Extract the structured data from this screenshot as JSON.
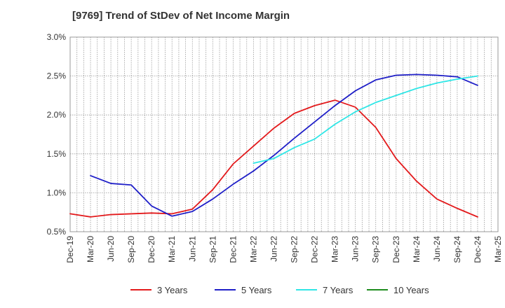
{
  "chart_data": {
    "type": "line",
    "title": "[9769]  Trend of StDev of Net Income Margin",
    "xlabel": "",
    "ylabel": "",
    "x": [
      "Dec-19",
      "Mar-20",
      "Jun-20",
      "Sep-20",
      "Dec-20",
      "Mar-21",
      "Jun-21",
      "Sep-21",
      "Dec-21",
      "Mar-22",
      "Jun-22",
      "Sep-22",
      "Dec-22",
      "Mar-23",
      "Jun-23",
      "Sep-23",
      "Dec-23",
      "Mar-24",
      "Jun-24",
      "Sep-24",
      "Dec-24",
      "Mar-25"
    ],
    "ylim": [
      0.5,
      3.0
    ],
    "yticks": [
      "0.5%",
      "1.0%",
      "1.5%",
      "2.0%",
      "2.5%",
      "3.0%"
    ],
    "grid": true,
    "legend_position": "bottom",
    "series": [
      {
        "name": "3 Years",
        "color": "#e31a1c",
        "values": [
          0.73,
          0.69,
          0.72,
          0.73,
          0.74,
          0.73,
          0.79,
          1.04,
          1.37,
          1.6,
          1.83,
          2.02,
          2.12,
          2.19,
          2.1,
          1.84,
          1.44,
          1.15,
          0.92,
          0.8,
          0.69,
          null
        ]
      },
      {
        "name": "5 Years",
        "color": "#1f1fc8",
        "values": [
          null,
          1.22,
          1.12,
          1.1,
          0.83,
          0.7,
          0.76,
          0.92,
          1.11,
          1.28,
          1.48,
          1.7,
          1.91,
          2.12,
          2.31,
          2.45,
          2.51,
          2.52,
          2.51,
          2.49,
          2.38,
          null
        ]
      },
      {
        "name": "7 Years",
        "color": "#2fe6e6",
        "values": [
          null,
          null,
          null,
          null,
          null,
          null,
          null,
          null,
          null,
          1.38,
          1.44,
          1.58,
          1.69,
          1.88,
          2.04,
          2.16,
          2.25,
          2.34,
          2.41,
          2.46,
          2.5,
          null
        ]
      },
      {
        "name": "10 Years",
        "color": "#1e8c1e",
        "values": [
          null,
          null,
          null,
          null,
          null,
          null,
          null,
          null,
          null,
          null,
          null,
          null,
          null,
          null,
          null,
          null,
          null,
          null,
          null,
          null,
          null,
          null
        ]
      }
    ]
  }
}
